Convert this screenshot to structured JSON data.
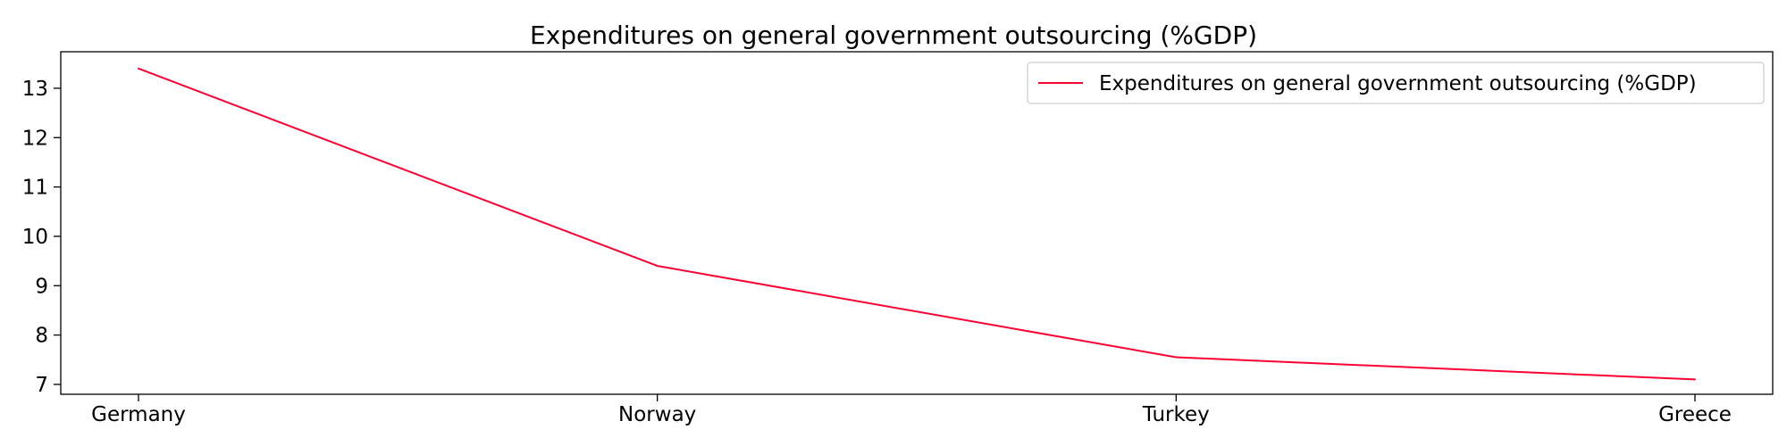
{
  "chart_data": {
    "type": "line",
    "title": "Expenditures on general government outsourcing (%GDP)",
    "xlabel": "",
    "ylabel": "",
    "categories": [
      "Germany",
      "Norway",
      "Turkey",
      "Greece"
    ],
    "series": [
      {
        "name": "Expenditures on general government outsourcing (%GDP)",
        "values": [
          13.4,
          9.4,
          7.55,
          7.1
        ],
        "color": "#ff0033"
      }
    ],
    "ylim": [
      6.8,
      13.74
    ],
    "yticks": [
      7,
      8,
      9,
      10,
      11,
      12,
      13
    ],
    "grid": false,
    "legend_position": "top-right"
  }
}
